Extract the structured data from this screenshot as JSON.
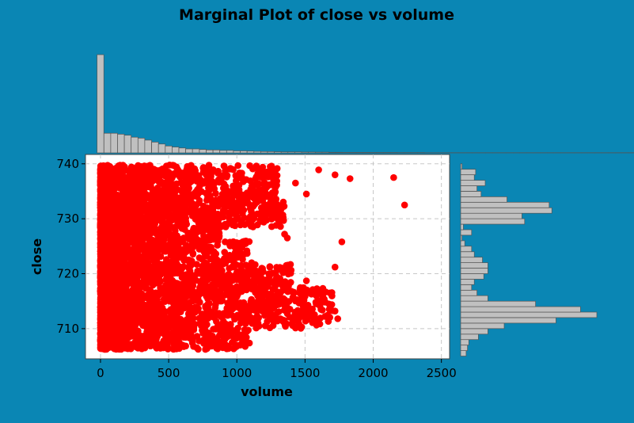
{
  "chart_data": {
    "type": "scatter",
    "title": "Marginal Plot of close vs volume",
    "xlabel": "volume",
    "ylabel": "close",
    "xlim": [
      -110,
      2560
    ],
    "ylim": [
      704.5,
      741.7
    ],
    "xticks": [
      0,
      500,
      1000,
      1500,
      2000,
      2500
    ],
    "yticks": [
      710,
      720,
      730,
      740
    ],
    "grid": true,
    "marker_color": "#ff0000",
    "plot_background": "#ffffff",
    "figure_background": "#0a86b4",
    "histogram_color": "#c0c0c0",
    "x_marginal_histogram": {
      "bin_width": 50,
      "bin_start": -25,
      "counts": [
        100,
        20,
        20,
        19,
        18,
        16,
        15,
        13,
        11,
        9,
        7,
        6,
        5,
        4,
        4,
        3.5,
        3,
        3,
        2.5,
        2.5,
        2,
        2,
        1.8,
        1.5,
        1.4,
        1.3,
        1.1,
        1,
        1,
        1,
        0.8,
        0.8,
        0.7,
        0.7,
        0.6,
        0.6,
        0.5,
        0.5,
        0.5,
        0.5,
        0.4,
        0.4,
        0.4,
        0.4,
        0.3,
        0.3,
        0.3,
        0.3,
        0.2,
        0.2,
        0.2,
        0.2,
        0.2,
        0.2,
        0.2,
        0.2,
        0.2,
        0.2,
        0.2,
        0.2,
        0.2,
        0.2,
        0.2,
        0.2,
        0.2,
        0.2,
        0.2,
        0.2,
        0.2,
        0.2,
        0.2,
        0.2,
        0.2,
        0.2,
        0.2,
        0.2,
        0.2,
        0.2,
        0.2,
        0.2,
        0.2,
        0.2,
        0.2,
        0.2,
        0.2,
        0.2,
        0.2
      ]
    },
    "y_marginal_histogram": {
      "bin_width": 1,
      "bin_start": 705,
      "counts": [
        4,
        5,
        6,
        13,
        20,
        32,
        70,
        100,
        88,
        55,
        20,
        12,
        8,
        10,
        17,
        20,
        20,
        16,
        10,
        8,
        3,
        1,
        8,
        2,
        47,
        45,
        67,
        65,
        34,
        15,
        12,
        18,
        10,
        11,
        1
      ]
    },
    "clusters": [
      {
        "y": [
          706.2,
          710.0
        ],
        "x_max": 1100,
        "n": 450
      },
      {
        "y": [
          710.0,
          717.5
        ],
        "x_max": 1700,
        "n": 1150
      },
      {
        "y": [
          717.5,
          722.0
        ],
        "x_max": 1400,
        "n": 650
      },
      {
        "y": [
          722.0,
          726.0
        ],
        "x_max": 1100,
        "n": 450
      },
      {
        "y": [
          726.0,
          728.5
        ],
        "x_max": 900,
        "n": 280
      },
      {
        "y": [
          728.5,
          734.5
        ],
        "x_max": 1350,
        "n": 900
      },
      {
        "y": [
          734.5,
          739.8
        ],
        "x_max": 1300,
        "n": 600
      }
    ],
    "outliers": [
      [
        2230,
        732.5
      ],
      [
        2150,
        737.5
      ],
      [
        1830,
        737.3
      ],
      [
        1720,
        738.0
      ],
      [
        1600,
        738.9
      ],
      [
        1510,
        734.5
      ],
      [
        1430,
        736.5
      ],
      [
        1770,
        725.8
      ],
      [
        1720,
        721.2
      ],
      [
        1740,
        711.8
      ],
      [
        1720,
        713.2
      ],
      [
        1510,
        718.7
      ],
      [
        1400,
        716.8
      ],
      [
        1370,
        726.5
      ],
      [
        1350,
        727.2
      ],
      [
        1320,
        711.8
      ],
      [
        1290,
        719.2
      ],
      [
        1250,
        738.0
      ],
      [
        1230,
        737.6
      ],
      [
        1200,
        731.0
      ],
      [
        1170,
        729.7
      ],
      [
        1180,
        732.0
      ],
      [
        1200,
        713.5
      ]
    ]
  }
}
